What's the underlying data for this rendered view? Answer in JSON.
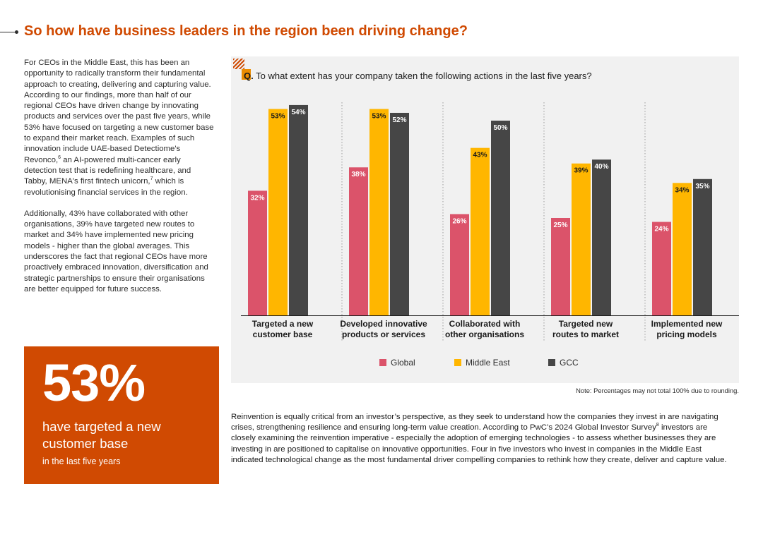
{
  "page": {
    "title": "So how have business leaders in the region been driving change?"
  },
  "intro": {
    "p1_part1": "For CEOs in the Middle East, this has been an opportunity to radically transform their fundamental approach to creating, delivering and capturing value. According to our findings, more than half of our regional CEOs have driven change by innovating products and services over the past five years, while 53% have focused on targeting a new customer base to expand their market reach. Examples of such innovation include UAE-based Detectiome's Revonco,",
    "p1_sup1": "6",
    "p1_part2": " an AI-powered multi-cancer early detection test that is redefining healthcare, and Tabby, MENA's first fintech unicorn,",
    "p1_sup2": "7",
    "p1_part3": " which is revolutionising financial services in the region.",
    "p2": "Additionally, 43% have collaborated with other organisations, 39% have targeted new routes to market and 34% have implemented new pricing models - higher than the global averages. This underscores the fact that regional CEOs have more proactively embraced innovation, diversification and strategic partnerships to ensure their organisations are better equipped for future success."
  },
  "callout": {
    "number": "53%",
    "text": "have targeted a new customer base",
    "subtext": "in the last five years"
  },
  "chart_data": {
    "type": "bar",
    "question_prefix": "Q.",
    "title": "To what extent has your company taken the following actions in the last five years?",
    "categories": [
      [
        "Targeted a new",
        "customer base"
      ],
      [
        "Developed innovative",
        "products or services"
      ],
      [
        "Collaborated with",
        "other organisations"
      ],
      [
        "Targeted new",
        "routes to market"
      ],
      [
        "Implemented new",
        "pricing models"
      ]
    ],
    "series": [
      {
        "name": "Global",
        "color": "#db536a",
        "values": [
          32,
          38,
          26,
          25,
          24
        ]
      },
      {
        "name": "Middle East",
        "color": "#ffb600",
        "values": [
          53,
          53,
          43,
          39,
          34
        ]
      },
      {
        "name": "GCC",
        "color": "#464646",
        "values": [
          54,
          52,
          50,
          40,
          35
        ]
      }
    ],
    "value_suffix": "%",
    "ylim": [
      0,
      60
    ],
    "legend_position": "bottom"
  },
  "note": "Note: Percentages may not total 100% due to rounding.",
  "body": {
    "part1": "Reinvention is equally critical from an investor’s perspective, as they seek to understand how the companies they invest in are navigating crises, strengthening resilience and ensuring long-term value creation. According to PwC’s 2024 Global Investor Survey",
    "sup": "8",
    "part2": " investors are closely examining the reinvention imperative - especially the adoption of emerging technologies - to assess whether businesses they are investing in are positioned to capitalise on innovative opportunities. Four in five investors who invest in companies in the Middle East indicated technological change as the most fundamental driver compelling companies to rethink how they create, deliver and capture value."
  },
  "colors": {
    "accent": "#d04a02",
    "panel": "#f1f1f1"
  }
}
